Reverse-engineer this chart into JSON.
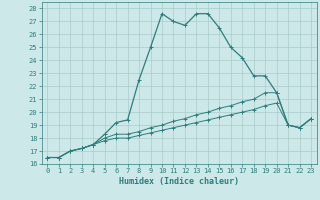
{
  "xlabel": "Humidex (Indice chaleur)",
  "bg_color": "#cce8e8",
  "grid_color": "#aacccc",
  "line_color": "#2e7d7d",
  "xlim": [
    -0.5,
    23.5
  ],
  "ylim": [
    16,
    28.5
  ],
  "xticks": [
    0,
    1,
    2,
    3,
    4,
    5,
    6,
    7,
    8,
    9,
    10,
    11,
    12,
    13,
    14,
    15,
    16,
    17,
    18,
    19,
    20,
    21,
    22,
    23
  ],
  "yticks": [
    16,
    17,
    18,
    19,
    20,
    21,
    22,
    23,
    24,
    25,
    26,
    27,
    28
  ],
  "series": [
    {
      "x": [
        0,
        1,
        2,
        3,
        4,
        5,
        6,
        7,
        8,
        9,
        10,
        11,
        12,
        13,
        14,
        15,
        16,
        17,
        18,
        19,
        20,
        21,
        22,
        23
      ],
      "y": [
        16.5,
        16.5,
        17.0,
        17.2,
        17.5,
        18.3,
        19.2,
        19.4,
        22.5,
        25.0,
        27.6,
        27.0,
        26.7,
        27.6,
        27.6,
        26.5,
        25.0,
        24.2,
        22.8,
        22.8,
        21.5,
        19.0,
        18.8,
        19.5
      ]
    },
    {
      "x": [
        0,
        1,
        2,
        3,
        4,
        5,
        6,
        7,
        8,
        9,
        10,
        11,
        12,
        13,
        14,
        15,
        16,
        17,
        18,
        19,
        20,
        21,
        22,
        23
      ],
      "y": [
        16.5,
        16.5,
        17.0,
        17.2,
        17.5,
        18.0,
        18.3,
        18.3,
        18.5,
        18.8,
        19.0,
        19.3,
        19.5,
        19.8,
        20.0,
        20.3,
        20.5,
        20.8,
        21.0,
        21.5,
        21.5,
        19.0,
        18.8,
        19.5
      ]
    },
    {
      "x": [
        0,
        1,
        2,
        3,
        4,
        5,
        6,
        7,
        8,
        9,
        10,
        11,
        12,
        13,
        14,
        15,
        16,
        17,
        18,
        19,
        20,
        21,
        22,
        23
      ],
      "y": [
        16.5,
        16.5,
        17.0,
        17.2,
        17.5,
        17.8,
        18.0,
        18.0,
        18.2,
        18.4,
        18.6,
        18.8,
        19.0,
        19.2,
        19.4,
        19.6,
        19.8,
        20.0,
        20.2,
        20.5,
        20.7,
        19.0,
        18.8,
        19.5
      ]
    }
  ]
}
